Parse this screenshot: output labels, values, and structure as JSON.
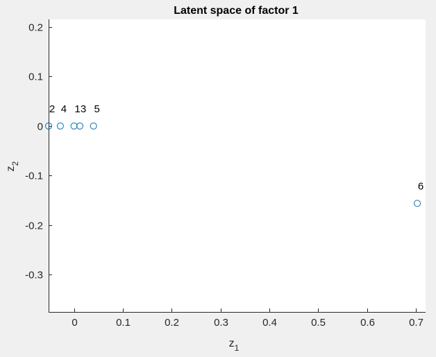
{
  "window": {
    "background": "#f0f0f0"
  },
  "chart_data": {
    "type": "scatter",
    "title": "Latent space of factor 1",
    "xlabel": {
      "base": "z",
      "sub": "1"
    },
    "ylabel": {
      "base": "z",
      "sub": "2"
    },
    "xlim": [
      -0.052,
      0.72
    ],
    "ylim": [
      -0.375,
      0.215
    ],
    "xticks": [
      0,
      0.1,
      0.2,
      0.3,
      0.4,
      0.5,
      0.6,
      0.7
    ],
    "xtick_labels": [
      "0",
      "0.1",
      "0.2",
      "0.3",
      "0.4",
      "0.5",
      "0.6",
      "0.7"
    ],
    "yticks": [
      0.2,
      0.1,
      0,
      -0.1,
      -0.2,
      -0.3
    ],
    "ytick_labels": [
      "0.2",
      "0.1",
      "0",
      "-0.1",
      "-0.2",
      "-0.3"
    ],
    "grid": false,
    "box": "left-bottom",
    "marker": "circle-open",
    "marker_color": "#0072bd",
    "axes_background": "#ffffff",
    "points": [
      {
        "x": -0.052,
        "y": 0.0,
        "label": "2"
      },
      {
        "x": -0.028,
        "y": 0.0,
        "label": "4"
      },
      {
        "x": 0.0,
        "y": 0.0,
        "label": "1"
      },
      {
        "x": 0.012,
        "y": 0.0,
        "label": "3"
      },
      {
        "x": 0.04,
        "y": 0.0,
        "label": "5"
      },
      {
        "x": 0.703,
        "y": -0.156,
        "label": "6"
      }
    ]
  }
}
